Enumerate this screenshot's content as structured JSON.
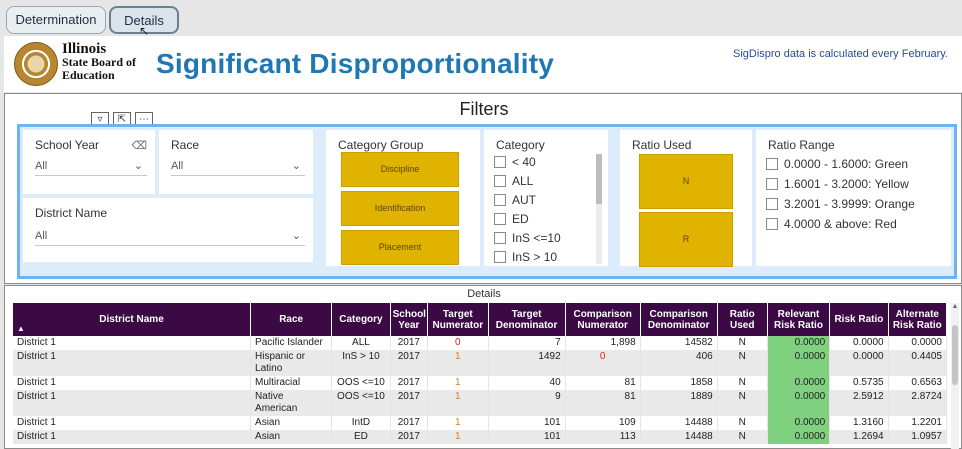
{
  "tabs": [
    {
      "label": "Determination",
      "active": false
    },
    {
      "label": "Details",
      "active": true
    }
  ],
  "header": {
    "logo_line1": "Illinois",
    "logo_line2": "State Board of",
    "logo_line3": "Education",
    "title": "Significant Disproportionality",
    "note": "SigDispro data is calculated every February."
  },
  "filters": {
    "title": "Filters",
    "school_year": {
      "label": "School Year",
      "value": "All"
    },
    "race": {
      "label": "Race",
      "value": "All"
    },
    "district_name": {
      "label": "District Name",
      "value": "All"
    },
    "category_group": {
      "label": "Category Group",
      "tiles": [
        "Discipline",
        "Identification",
        "Placement"
      ]
    },
    "category": {
      "label": "Category",
      "items": [
        "< 40",
        "ALL",
        "AUT",
        "ED",
        "InS <=10",
        "InS > 10"
      ]
    },
    "ratio_used": {
      "label": "Ratio Used",
      "tiles": [
        "N",
        "R"
      ]
    },
    "ratio_range": {
      "label": "Ratio Range",
      "items": [
        "0.0000 - 1.6000: Green",
        "1.6001 - 3.2000: Yellow",
        "3.2001 - 3.9999: Orange",
        "4.0000 & above: Red"
      ]
    },
    "accent_color": "#6cb3f0",
    "tile_color": "#dfb300"
  },
  "details": {
    "title": "Details",
    "header_color": "#3b0a45",
    "columns": [
      "District Name",
      "Race",
      "Category",
      "School Year",
      "Target Numerator",
      "Target Denominator",
      "Comparison Numerator",
      "Comparison Denominator",
      "Ratio Used",
      "Relevant Risk Ratio",
      "Risk Ratio",
      "Alternate Risk Ratio"
    ],
    "rows": [
      [
        "District 1",
        "Pacific Islander",
        "ALL",
        "2017",
        "0",
        "7",
        "1,898",
        "14582",
        "N",
        "0.0000",
        "0.0000",
        "0.0000"
      ],
      [
        "District 1",
        "Hispanic or Latino",
        "InS > 10",
        "2017",
        "1",
        "1492",
        "0",
        "406",
        "N",
        "0.0000",
        "0.0000",
        "0.4405"
      ],
      [
        "District 1",
        "Multiracial",
        "OOS <=10",
        "2017",
        "1",
        "40",
        "81",
        "1858",
        "N",
        "0.0000",
        "0.5735",
        "0.6563"
      ],
      [
        "District 1",
        "Native American",
        "OOS <=10",
        "2017",
        "1",
        "9",
        "81",
        "1889",
        "N",
        "0.0000",
        "2.5912",
        "2.8724"
      ],
      [
        "District 1",
        "Asian",
        "IntD",
        "2017",
        "1",
        "101",
        "109",
        "14488",
        "N",
        "0.0000",
        "1.3160",
        "1.2201"
      ],
      [
        "District 1",
        "Asian",
        "ED",
        "2017",
        "1",
        "101",
        "113",
        "14488",
        "N",
        "0.0000",
        "1.2694",
        "1.0957"
      ]
    ]
  }
}
